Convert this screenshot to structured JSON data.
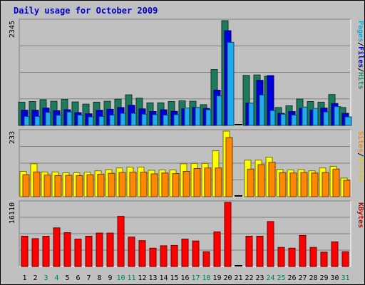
{
  "chart_data": {
    "type": "bar",
    "title": "Daily usage for October 2009",
    "categories": [
      "1",
      "2",
      "3",
      "4",
      "5",
      "6",
      "7",
      "8",
      "9",
      "10",
      "11",
      "12",
      "13",
      "14",
      "15",
      "16",
      "17",
      "18",
      "19",
      "20",
      "21",
      "22",
      "23",
      "24",
      "25",
      "26",
      "27",
      "28",
      "29",
      "30",
      "31"
    ],
    "weekend_days": [
      "3",
      "4",
      "10",
      "11",
      "17",
      "18",
      "24",
      "25",
      "31"
    ],
    "panels": [
      {
        "id": "hits_files_pages",
        "ymax": 2345,
        "ymax_label": "2345",
        "right_label": [
          "Pages",
          "/",
          "Files",
          "/",
          "Hits"
        ],
        "right_label_colors": [
          "#00b4e6",
          "#000000",
          "#0000cc",
          "#000000",
          "#1e8c6e"
        ],
        "series": [
          {
            "name": "Hits",
            "color": "#1e7a5e",
            "values": [
              520,
              535,
              575,
              540,
              580,
              525,
              475,
              520,
              540,
              585,
              685,
              610,
              505,
              505,
              535,
              550,
              540,
              465,
              1250,
              2345,
              0,
              1120,
              1130,
              1100,
              400,
              440,
              590,
              535,
              520,
              690,
              400
            ]
          },
          {
            "name": "Files",
            "color": "#0000dd",
            "values": [
              340,
              340,
              390,
              330,
              350,
              285,
              260,
              340,
              360,
              400,
              450,
              370,
              310,
              350,
              315,
              370,
              400,
              380,
              790,
              2120,
              0,
              500,
              1010,
              1115,
              270,
              310,
              380,
              340,
              390,
              490,
              270
            ]
          },
          {
            "name": "Pages",
            "color": "#22aaee",
            "values": [
              200,
              200,
              290,
              225,
              300,
              230,
              190,
              200,
              230,
              270,
              270,
              250,
              240,
              230,
              240,
              390,
              400,
              350,
              660,
              1860,
              0,
              500,
              680,
              330,
              250,
              230,
              410,
              380,
              300,
              420,
              190
            ]
          }
        ]
      },
      {
        "id": "visits_sites",
        "ymax": 233,
        "ymax_label": "233",
        "right_label": [
          "Sites",
          "/",
          "Visits"
        ],
        "right_label_colors": [
          "#ff8800",
          "#000000",
          "#e6c800"
        ],
        "series": [
          {
            "name": "Visits",
            "color": "#ffff00",
            "values": [
              90,
              117,
              88,
              88,
              85,
              85,
              87,
              92,
              96,
              102,
              105,
              105,
              94,
              95,
              95,
              117,
              118,
              118,
              163,
              233,
              0,
              130,
              130,
              140,
              97,
              95,
              96,
              92,
              102,
              108,
              66
            ]
          },
          {
            "name": "Sites",
            "color": "#ff8800",
            "values": [
              78,
              88,
              77,
              75,
              76,
              75,
              78,
              80,
              83,
              86,
              87,
              87,
              81,
              84,
              82,
              90,
              100,
              102,
              102,
              210,
              0,
              98,
              114,
              122,
              85,
              84,
              86,
              84,
              86,
              98,
              58
            ]
          }
        ]
      },
      {
        "id": "kbytes",
        "ymax": 16110,
        "ymax_label": "16110",
        "right_label": [
          "KBytes"
        ],
        "right_label_colors": [
          "#cc0000"
        ],
        "series": [
          {
            "name": "KBytes",
            "color": "#ff0000",
            "values": [
              7600,
              7000,
              7600,
              9700,
              8500,
              6900,
              7600,
              8400,
              8400,
              12600,
              7400,
              6500,
              4600,
              5200,
              5300,
              6900,
              6400,
              3700,
              8700,
              16110,
              0,
              7600,
              7600,
              11300,
              4800,
              4600,
              7800,
              4800,
              3600,
              6200,
              3700
            ]
          }
        ]
      }
    ]
  }
}
